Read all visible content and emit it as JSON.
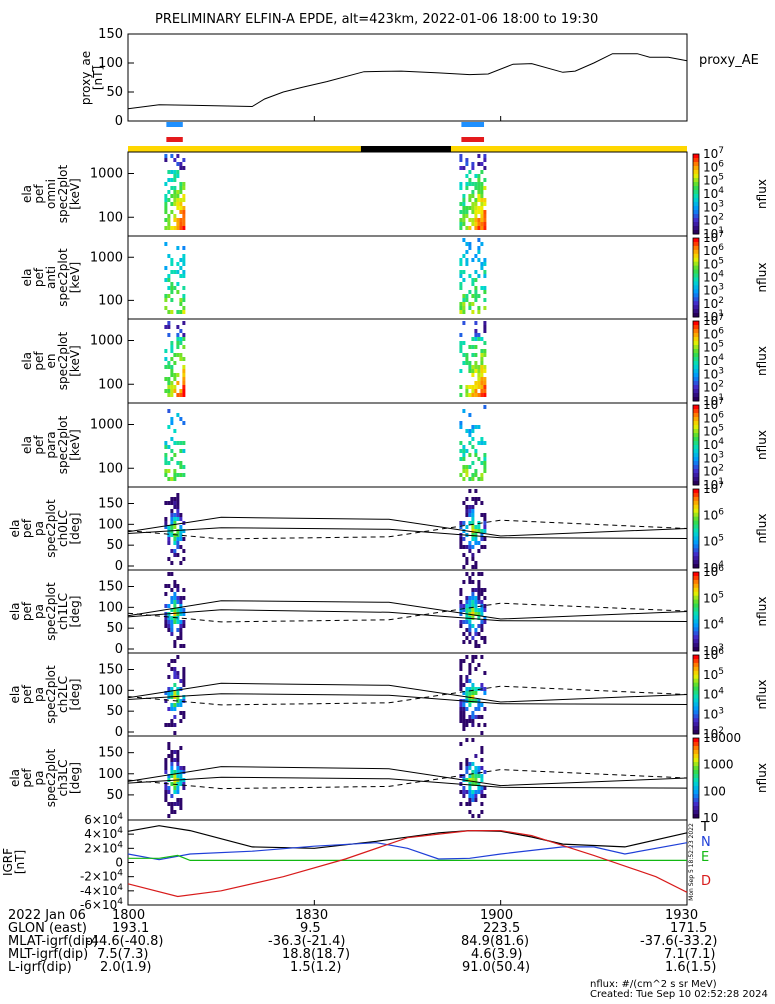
{
  "title": "PRELIMINARY ELFIN-A EPDE, alt=423km, 2022-01-06 18:00 to 19:30",
  "colors": {
    "gold": "#FFD700",
    "black": "#000000",
    "blue": "#1E90FF",
    "red": "#E41A1C",
    "igrf_T": "#000000",
    "igrf_N": "#1F3FD8",
    "igrf_E": "#12B812",
    "igrf_D": "#D81B1B"
  },
  "panels": {
    "ae": {
      "ylabel": "proxy_ae\n[nT]",
      "legend": "proxy_AE",
      "ticks": [
        "150",
        "100",
        "50",
        "0"
      ]
    },
    "spec": [
      {
        "ylabel": "ela\npef\nomni\nspec2plot\n[keV]",
        "ticks": [
          "1000",
          "100"
        ],
        "cb_ticks": [
          "10",
          "10",
          "10",
          "10",
          "10",
          "10",
          "10"
        ],
        "cb_exps": [
          "7",
          "6",
          "5",
          "4",
          "3",
          "2",
          "1"
        ],
        "cb_label": "nflux"
      },
      {
        "ylabel": "ela\npef\nanti\nspec2plot\n[keV]",
        "ticks": [
          "1000",
          "100"
        ],
        "cb_ticks": [
          "10",
          "10",
          "10",
          "10",
          "10",
          "10",
          "10"
        ],
        "cb_exps": [
          "7",
          "6",
          "5",
          "4",
          "3",
          "2",
          "1"
        ],
        "cb_label": "nflux"
      },
      {
        "ylabel": "ela\npef\nen\nspec2plot\n[keV]",
        "ticks": [
          "1000",
          "100"
        ],
        "cb_ticks": [
          "10",
          "10",
          "10",
          "10",
          "10",
          "10",
          "10"
        ],
        "cb_exps": [
          "7",
          "6",
          "5",
          "4",
          "3",
          "2",
          "1"
        ],
        "cb_label": "nflux"
      },
      {
        "ylabel": "ela\npef\npara\nspec2plot\n[keV]",
        "ticks": [
          "1000",
          "100"
        ],
        "cb_ticks": [
          "10",
          "10",
          "10",
          "10",
          "10",
          "10",
          "10"
        ],
        "cb_exps": [
          "7",
          "6",
          "5",
          "4",
          "3",
          "2",
          "1"
        ],
        "cb_label": "nflux"
      }
    ],
    "pa": [
      {
        "ylabel": "ela\npef\npa\nspec2plot\nch0LC\n[deg]",
        "ticks": [
          "150",
          "100",
          "50",
          "0"
        ],
        "cb_ticks": [
          "10",
          "10",
          "10",
          "10"
        ],
        "cb_exps": [
          "7",
          "6",
          "5",
          "4"
        ],
        "cb_label": "nflux"
      },
      {
        "ylabel": "ela\npef\npa\nspec2plot\nch1LC\n[deg]",
        "ticks": [
          "150",
          "100",
          "50",
          "0"
        ],
        "cb_ticks": [
          "10",
          "10",
          "10",
          "10"
        ],
        "cb_exps": [
          "6",
          "5",
          "4",
          "3"
        ],
        "cb_label": "nflux"
      },
      {
        "ylabel": "ela\npef\npa\nspec2plot\nch2LC\n[deg]",
        "ticks": [
          "150",
          "100",
          "50",
          "0"
        ],
        "cb_ticks": [
          "10",
          "10",
          "10",
          "10",
          "10"
        ],
        "cb_exps": [
          "6",
          "5",
          "4",
          "3",
          "2"
        ],
        "cb_label": "nflux"
      },
      {
        "ylabel": "ela\npef\npa\nspec2plot\nch3LC\n[deg]",
        "ticks": [
          "150",
          "100",
          "50"
        ],
        "cb_ticks": [
          "10000",
          "1000",
          "100",
          "10"
        ],
        "cb_exps": [
          "",
          "",
          "",
          ""
        ],
        "cb_label": "nflux"
      }
    ],
    "igrf": {
      "ylabel": "IGRF\n[nT]",
      "ticks": [
        [
          "6",
          "10",
          "4"
        ],
        [
          "4",
          "10",
          "4"
        ],
        [
          "2",
          "10",
          "4"
        ],
        [
          "0",
          "",
          ""
        ],
        [
          "-2",
          "10",
          "4"
        ],
        [
          "-4",
          "10",
          "4"
        ],
        [
          "-6",
          "10",
          "4"
        ]
      ],
      "labels": [
        "T",
        "N",
        "E",
        "D"
      ],
      "side": "Mon Sep 5 18:52:23 2022"
    }
  },
  "chart_data": {
    "type": "line",
    "time_range": [
      "2022-01-06 18:00",
      "2022-01-06 19:30"
    ],
    "x_tick_labels": [
      "1800",
      "1830",
      "1900",
      "1930"
    ],
    "proxy_ae": {
      "ylim": [
        0,
        150
      ],
      "x_minutes": [
        0,
        5,
        10,
        15,
        20,
        22,
        25,
        28,
        32,
        38,
        44,
        50,
        55,
        58,
        62,
        65,
        70,
        72,
        75,
        78,
        82,
        84,
        87,
        90
      ],
      "values": [
        21,
        28,
        27,
        26,
        25,
        38,
        50,
        58,
        68,
        85,
        86,
        83,
        80,
        81,
        98,
        99,
        84,
        86,
        100,
        116,
        116,
        110,
        110,
        104
      ]
    },
    "igrf": {
      "ylim": [
        -60000,
        60000
      ],
      "series": [
        {
          "name": "T",
          "x_minutes": [
            0,
            5,
            10,
            20,
            30,
            40,
            50,
            55,
            60,
            65,
            70,
            80,
            90
          ],
          "values": [
            44000,
            52000,
            45000,
            22000,
            20000,
            30000,
            42000,
            45000,
            44000,
            36000,
            26000,
            22000,
            42000
          ]
        },
        {
          "name": "N",
          "x_minutes": [
            0,
            5,
            10,
            20,
            30,
            40,
            45,
            50,
            55,
            60,
            70,
            75,
            80,
            90
          ],
          "values": [
            12000,
            4000,
            12000,
            16000,
            23000,
            28000,
            20000,
            5000,
            6000,
            12000,
            22000,
            22000,
            12000,
            28000
          ]
        },
        {
          "name": "E",
          "x_minutes": [
            0,
            5,
            8,
            10,
            20,
            40,
            60,
            80,
            90
          ],
          "values": [
            6000,
            6000,
            10000,
            3000,
            3000,
            3000,
            3000,
            3000,
            3000
          ]
        },
        {
          "name": "D",
          "x_minutes": [
            0,
            8,
            15,
            25,
            35,
            45,
            55,
            60,
            65,
            75,
            85,
            90
          ],
          "values": [
            -30000,
            -48000,
            -40000,
            -20000,
            5000,
            35000,
            45000,
            45000,
            38000,
            10000,
            -20000,
            -42000
          ]
        }
      ]
    },
    "pitch_angle_lines": [
      {
        "name": "ch0LC",
        "solid_upper": [
          [
            0,
            82
          ],
          [
            15,
            117
          ],
          [
            42,
            112
          ],
          [
            60,
            72
          ],
          [
            90,
            90
          ]
        ],
        "solid_lower": [
          [
            0,
            78
          ],
          [
            15,
            92
          ],
          [
            42,
            88
          ],
          [
            60,
            68
          ],
          [
            90,
            66
          ]
        ],
        "dashed": [
          [
            0,
            85
          ],
          [
            15,
            65
          ],
          [
            42,
            70
          ],
          [
            60,
            110
          ],
          [
            90,
            90
          ]
        ]
      },
      {
        "name": "ch1LC",
        "solid_upper": [
          [
            0,
            80
          ],
          [
            15,
            116
          ],
          [
            42,
            112
          ],
          [
            60,
            72
          ],
          [
            90,
            90
          ]
        ],
        "solid_lower": [
          [
            0,
            77
          ],
          [
            15,
            94
          ],
          [
            42,
            88
          ],
          [
            60,
            68
          ],
          [
            90,
            66
          ]
        ],
        "dashed": [
          [
            0,
            86
          ],
          [
            15,
            65
          ],
          [
            42,
            70
          ],
          [
            60,
            110
          ],
          [
            90,
            91
          ]
        ]
      },
      {
        "name": "ch2LC",
        "solid_upper": [
          [
            0,
            82
          ],
          [
            15,
            117
          ],
          [
            42,
            112
          ],
          [
            60,
            72
          ],
          [
            90,
            90
          ]
        ],
        "solid_lower": [
          [
            0,
            78
          ],
          [
            15,
            92
          ],
          [
            42,
            88
          ],
          [
            60,
            68
          ],
          [
            90,
            66
          ]
        ],
        "dashed": [
          [
            0,
            85
          ],
          [
            15,
            65
          ],
          [
            42,
            70
          ],
          [
            60,
            110
          ],
          [
            90,
            90
          ]
        ]
      },
      {
        "name": "ch3LC",
        "solid_upper": [
          [
            0,
            82
          ],
          [
            15,
            117
          ],
          [
            42,
            112
          ],
          [
            60,
            72
          ],
          [
            90,
            90
          ]
        ],
        "solid_lower": [
          [
            0,
            78
          ],
          [
            15,
            92
          ],
          [
            42,
            88
          ],
          [
            60,
            68
          ],
          [
            90,
            66
          ]
        ],
        "dashed": [
          [
            0,
            85
          ],
          [
            15,
            65
          ],
          [
            42,
            70
          ],
          [
            60,
            110
          ],
          [
            90,
            90
          ]
        ]
      }
    ],
    "bursts_minutes": [
      [
        6.5,
        8.5
      ],
      [
        54,
        57
      ]
    ],
    "status_bar": [
      {
        "start": 0,
        "end": 37.5,
        "color": "gold"
      },
      {
        "start": 37.5,
        "end": 52,
        "color": "black"
      },
      {
        "start": 52,
        "end": 90,
        "color": "gold"
      }
    ]
  },
  "footer": {
    "rows": [
      {
        "label": "2022 Jan 06",
        "values": [
          "1800",
          "1830",
          "1900",
          "1930"
        ]
      },
      {
        "label": "GLON (east)",
        "values": [
          "193.1",
          "9.5",
          "223.5",
          "171.5"
        ]
      },
      {
        "label": "MLAT-igrf(dip)",
        "values": [
          "-44.6(-40.8)",
          "-36.3(-21.4)",
          "84.9(81.6)",
          "-37.6(-33.2)"
        ]
      },
      {
        "label": "MLT-igrf(dip)",
        "values": [
          "7.5(7.3)",
          "18.8(18.7)",
          "4.6(3.9)",
          "7.1(7.1)"
        ]
      },
      {
        "label": "L-igrf(dip)",
        "values": [
          "2.0(1.9)",
          "1.5(1.2)",
          "91.0(50.4)",
          "1.6(1.5)"
        ]
      }
    ],
    "units": "nflux: #/(cm^2 s sr MeV)",
    "created": "Created: Tue Sep 10 02:52:28 2024"
  }
}
